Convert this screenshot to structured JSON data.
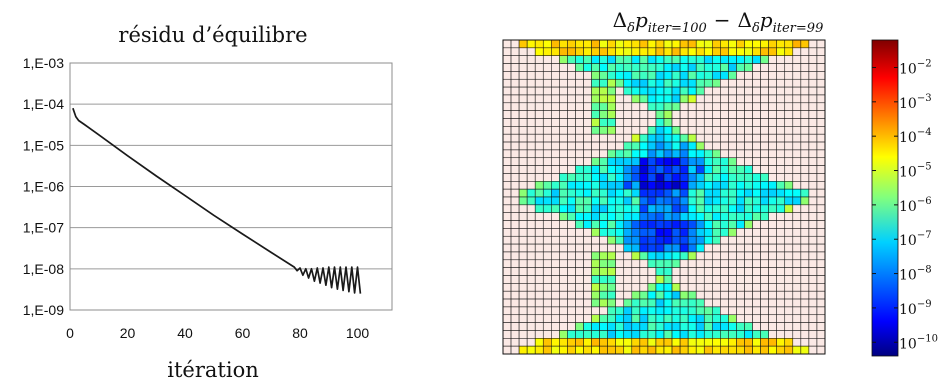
{
  "chart_data": [
    {
      "type": "line",
      "title": "résidu d’équilibre",
      "xlabel": "itération",
      "ylabel": "",
      "x_ticks": [
        0,
        20,
        40,
        60,
        80,
        100
      ],
      "x_tick_labels": [
        "0",
        "20",
        "40",
        "60",
        "80",
        "100"
      ],
      "xlim": [
        0,
        112
      ],
      "y_scale": "log",
      "ylim": [
        1e-09,
        0.001
      ],
      "y_ticks": [
        0.001,
        0.0001,
        1e-05,
        1e-06,
        1e-07,
        1e-08,
        1e-09
      ],
      "y_tick_labels": [
        "1,E-03",
        "1,E-04",
        "1,E-05",
        "1,E-06",
        "1,E-07",
        "1,E-08",
        "1,E-09"
      ],
      "grid": "horizontal",
      "line_color": "#1a1a1a",
      "series": [
        {
          "x": [
            1,
            2,
            3,
            5,
            10,
            20,
            30,
            40,
            50,
            60,
            70,
            78,
            79,
            80,
            81,
            82,
            83,
            84,
            85,
            86,
            87,
            88,
            89,
            90,
            91,
            92,
            93,
            94,
            95,
            96,
            97,
            98,
            99,
            100,
            101
          ],
          "values": [
            8e-05,
            5e-05,
            4e-05,
            3.2e-05,
            1.8e-05,
            5.6e-06,
            1.8e-06,
            6e-07,
            2e-07,
            7e-08,
            2.5e-08,
            1.1e-08,
            9e-09,
            1.05e-08,
            7e-09,
            1e-08,
            6e-09,
            1e-08,
            5e-09,
            1.05e-08,
            4.5e-09,
            1.05e-08,
            4e-09,
            1.1e-08,
            3.5e-09,
            1.1e-08,
            3.2e-09,
            1.1e-08,
            3e-09,
            1.1e-08,
            2.8e-09,
            1.1e-08,
            2.6e-09,
            1.1e-08,
            2.5e-09
          ]
        }
      ]
    },
    {
      "type": "heatmap",
      "title": "Δ_δ p_iter=100 − Δ_δ p_iter=99",
      "title_parts": {
        "delta1": "Δ",
        "sub_delta1": "δ",
        "p1": "p",
        "sub1": "iter=100",
        "minus": "−",
        "delta2": "Δ",
        "sub_delta2": "δ",
        "p2": "p",
        "sub2": "iter=99"
      },
      "grid_size": [
        40,
        40
      ],
      "colormap": "jet",
      "color_scale": "log",
      "below_range_color": "#fbe9e5",
      "cell_border_color": "#111111",
      "colorbar": {
        "range_log10": [
          -10.4,
          -1.2
        ],
        "ticks_log10": [
          -2,
          -3,
          -4,
          -5,
          -6,
          -7,
          -8,
          -9,
          -10
        ],
        "tick_bases": [
          "10",
          "10",
          "10",
          "10",
          "10",
          "10",
          "10",
          "10",
          "10"
        ],
        "tick_exponents": [
          "−2",
          "−3",
          "−4",
          "−5",
          "−6",
          "−7",
          "−8",
          "−9",
          "−10"
        ]
      }
    }
  ]
}
